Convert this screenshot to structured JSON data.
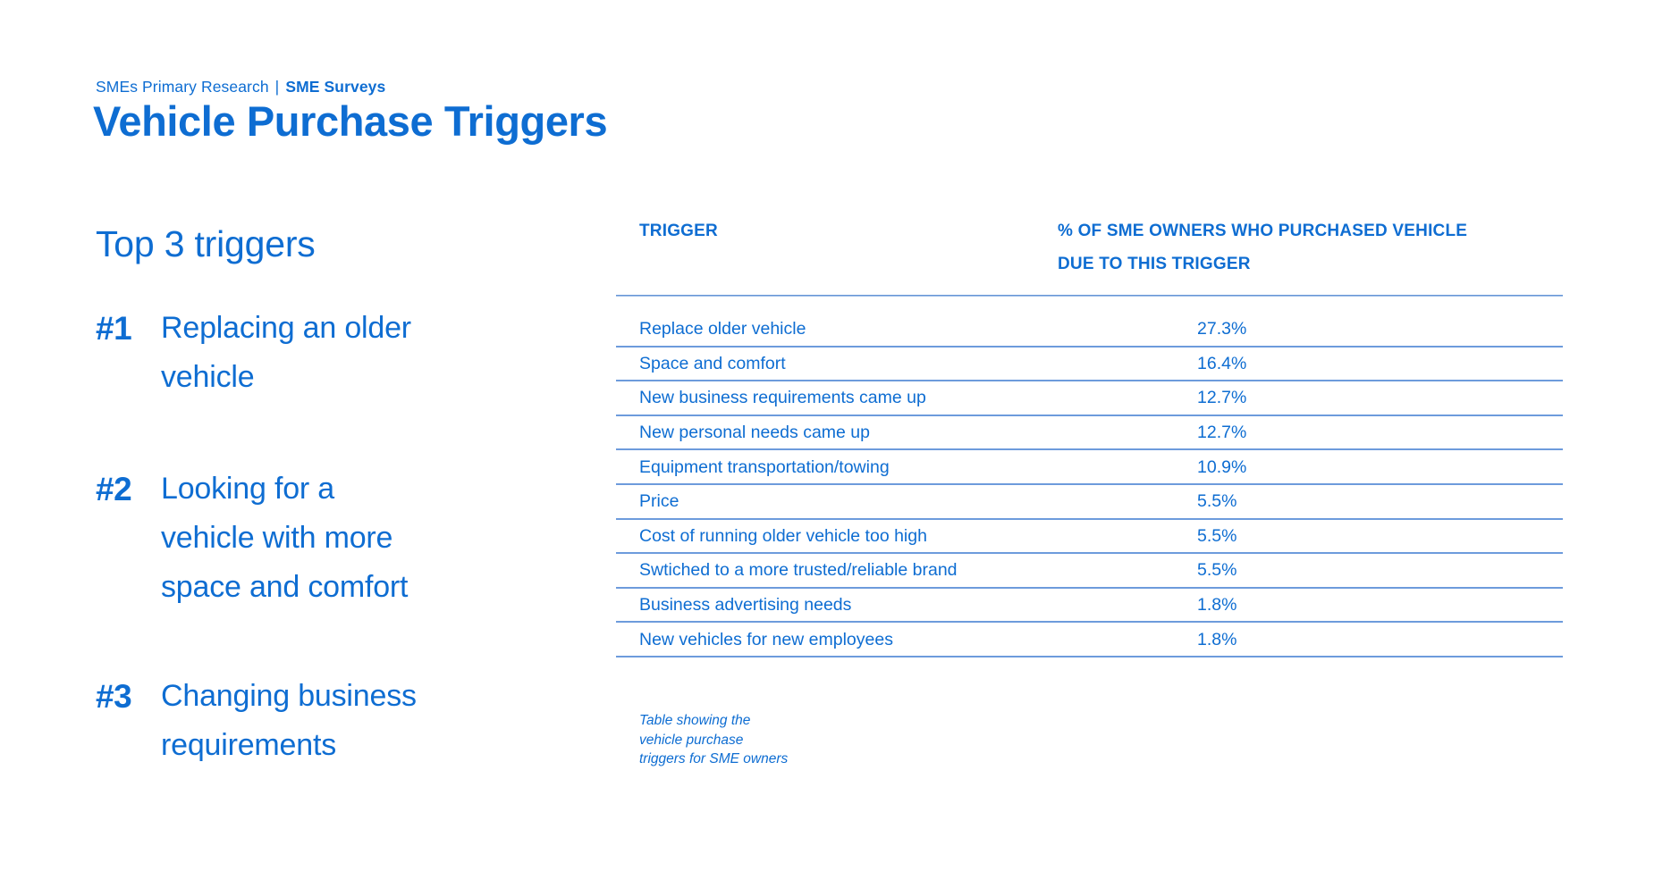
{
  "header": {
    "breadcrumb": {
      "section": "SMEs Primary Research",
      "separator": "|",
      "subsection": "SME Surveys"
    },
    "title": "Vehicle Purchase Triggers"
  },
  "highlights": {
    "heading": "Top 3 triggers",
    "items": [
      {
        "rank": "#1",
        "text": "Replacing an older\nvehicle"
      },
      {
        "rank": "#2",
        "text": "Looking for a\nvehicle with more\nspace and comfort"
      },
      {
        "rank": "#3",
        "text": "Changing business\nrequirements"
      }
    ]
  },
  "table": {
    "columns": [
      "TRIGGER",
      "% OF SME OWNERS WHO PURCHASED VEHICLE\nDUE TO THIS TRIGGER"
    ],
    "rows": [
      {
        "trigger": "Replace older vehicle",
        "value": "27.3%"
      },
      {
        "trigger": "Space and comfort",
        "value": "16.4%"
      },
      {
        "trigger": "New business requirements came up",
        "value": "12.7%"
      },
      {
        "trigger": "New personal needs came up",
        "value": "12.7%"
      },
      {
        "trigger": "Equipment transportation/towing",
        "value": "10.9%"
      },
      {
        "trigger": "Price",
        "value": "5.5%"
      },
      {
        "trigger": "Cost of running older vehicle too high",
        "value": "5.5%"
      },
      {
        "trigger": "Swtiched to a more trusted/reliable brand",
        "value": "5.5%"
      },
      {
        "trigger": "Business advertising needs",
        "value": "1.8%"
      },
      {
        "trigger": "New vehicles for new employees",
        "value": "1.8%"
      }
    ],
    "caption": "Table showing the\nvehicle purchase\ntriggers for SME owners"
  },
  "chart_data": {
    "type": "table",
    "title": "Vehicle Purchase Triggers",
    "categories": [
      "Replace older vehicle",
      "Space and comfort",
      "New business requirements came up",
      "New personal needs came up",
      "Equipment transportation/towing",
      "Price",
      "Cost of running older vehicle too high",
      "Swtiched to a more trusted/reliable brand",
      "Business advertising needs",
      "New vehicles for new employees"
    ],
    "values": [
      27.3,
      16.4,
      12.7,
      12.7,
      10.9,
      5.5,
      5.5,
      5.5,
      1.8,
      1.8
    ],
    "value_unit": "%"
  },
  "colors": {
    "accent": "#0e6dd2",
    "rule": "#6d9bdc"
  }
}
